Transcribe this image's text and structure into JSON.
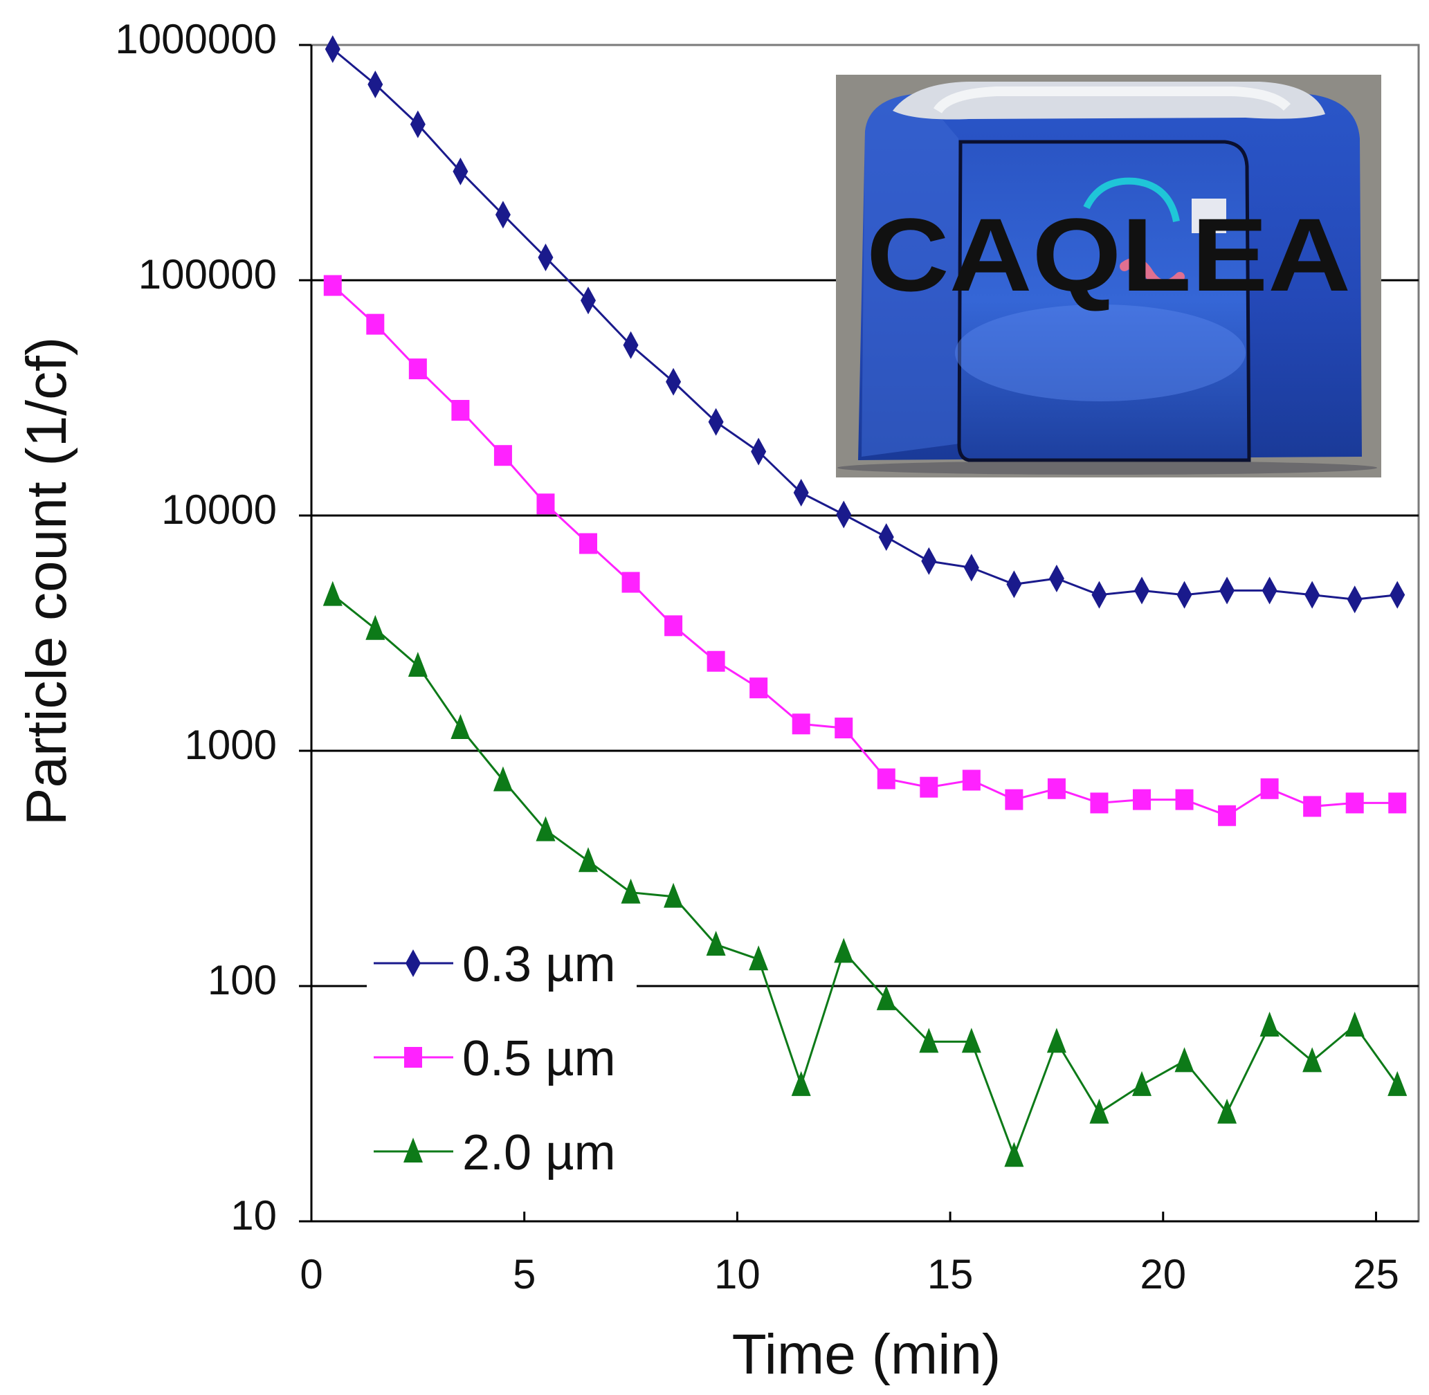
{
  "chart_data": {
    "type": "line",
    "title": "",
    "xlabel": "Time (min)",
    "ylabel": "Particle count (1/cf)",
    "xlim": [
      0,
      26
    ],
    "xticks": [
      0,
      5,
      10,
      15,
      20,
      25
    ],
    "x_tick_labels": [
      "0",
      "5",
      "10",
      "15",
      "20",
      "25"
    ],
    "y_scale": "log",
    "ylim": [
      10,
      1000000
    ],
    "yticks": [
      10,
      100,
      1000,
      10000,
      100000,
      1000000
    ],
    "y_tick_labels": [
      "10",
      "100",
      "1000",
      "10000",
      "100000",
      "1000000"
    ],
    "grid": "horizontal major gridlines",
    "legend_position": "bottom-left",
    "x": [
      0.5,
      1.5,
      2.5,
      3.5,
      4.5,
      5.5,
      6.5,
      7.5,
      8.5,
      9.5,
      10.5,
      11.5,
      12.5,
      13.5,
      14.5,
      15.5,
      16.5,
      17.5,
      18.5,
      19.5,
      20.5,
      21.5,
      22.5,
      23.5,
      24.5,
      25.5
    ],
    "series": [
      {
        "name": "0.3 µm",
        "color": "#1a1a8c",
        "marker": "diamond",
        "values": [
          960000,
          680000,
          460000,
          290000,
          190000,
          125000,
          82000,
          53000,
          37000,
          25000,
          18700,
          12500,
          10100,
          8100,
          6400,
          6000,
          5100,
          5400,
          4600,
          4800,
          4600,
          4800,
          4800,
          4600,
          4400,
          4600
        ]
      },
      {
        "name": "0.5 µm",
        "color": "#ff22ff",
        "marker": "square",
        "values": [
          95000,
          65000,
          42000,
          28000,
          18000,
          11200,
          7600,
          5200,
          3400,
          2400,
          1850,
          1300,
          1250,
          760,
          700,
          750,
          620,
          690,
          600,
          620,
          620,
          530,
          690,
          580,
          600,
          600
        ]
      },
      {
        "name": "2.0 µm",
        "color": "#0d7a18",
        "marker": "triangle",
        "values": [
          4600,
          3300,
          2300,
          1250,
          750,
          460,
          340,
          250,
          240,
          150,
          130,
          38,
          140,
          88,
          58,
          58,
          19,
          58,
          29,
          38,
          48,
          29,
          68,
          48,
          68,
          38
        ]
      }
    ],
    "inset_photo": {
      "logo_text": "CAQLEA"
    }
  }
}
